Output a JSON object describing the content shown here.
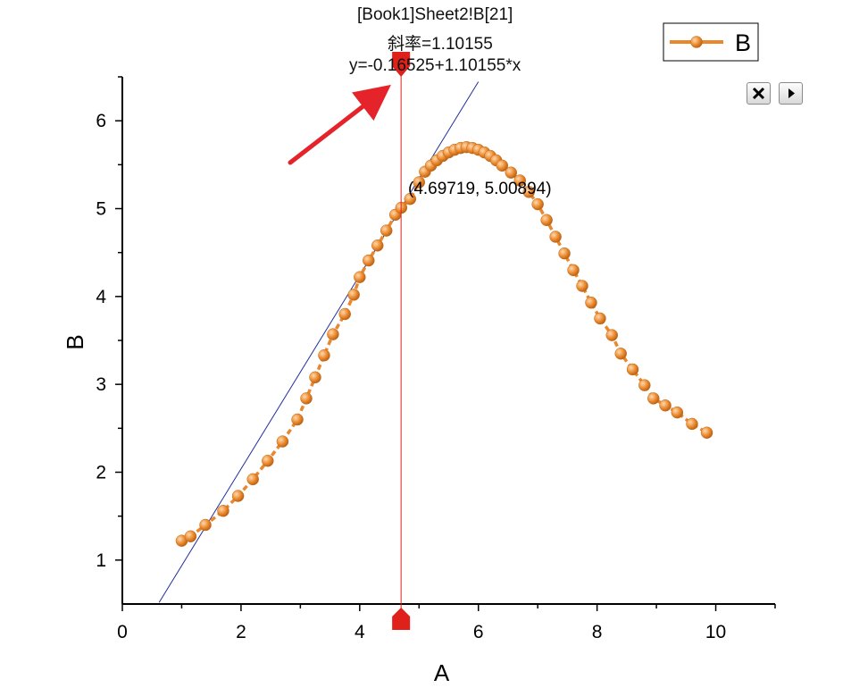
{
  "chart_data": {
    "type": "scatter",
    "xlabel": "A",
    "ylabel": "B",
    "xlim": [
      0,
      11
    ],
    "ylim": [
      0.5,
      6.5
    ],
    "x_ticks": [
      "0",
      "2",
      "4",
      "6",
      "8",
      "10"
    ],
    "y_ticks": [
      "1",
      "2",
      "3",
      "4",
      "5",
      "6"
    ],
    "x_tick_values": [
      0,
      2,
      4,
      6,
      8,
      10
    ],
    "y_tick_values": [
      1,
      2,
      3,
      4,
      5,
      6
    ],
    "legend": {
      "label": "B",
      "position": "top-right"
    },
    "series": [
      {
        "name": "B",
        "color": "#E8872E",
        "x": [
          1.0,
          1.15,
          1.4,
          1.7,
          1.95,
          2.2,
          2.45,
          2.7,
          2.95,
          3.1,
          3.25,
          3.4,
          3.55,
          3.75,
          3.9,
          4.0,
          4.15,
          4.3,
          4.45,
          4.6,
          4.7,
          4.85,
          5.0,
          5.1,
          5.2,
          5.3,
          5.4,
          5.5,
          5.6,
          5.7,
          5.8,
          5.9,
          6.0,
          6.1,
          6.2,
          6.3,
          6.4,
          6.55,
          6.7,
          6.85,
          7.0,
          7.15,
          7.3,
          7.45,
          7.6,
          7.75,
          7.9,
          8.05,
          8.25,
          8.4,
          8.6,
          8.8,
          8.95,
          9.15,
          9.35,
          9.6,
          9.85
        ],
        "y": [
          1.22,
          1.27,
          1.4,
          1.56,
          1.73,
          1.92,
          2.13,
          2.35,
          2.6,
          2.84,
          3.08,
          3.33,
          3.57,
          3.8,
          4.02,
          4.22,
          4.41,
          4.58,
          4.75,
          4.93,
          5.01,
          5.11,
          5.3,
          5.42,
          5.49,
          5.55,
          5.6,
          5.64,
          5.67,
          5.69,
          5.7,
          5.69,
          5.67,
          5.64,
          5.6,
          5.55,
          5.49,
          5.41,
          5.32,
          5.19,
          5.05,
          4.87,
          4.68,
          4.49,
          4.3,
          4.12,
          3.93,
          3.75,
          3.56,
          3.35,
          3.17,
          2.99,
          2.84,
          2.76,
          2.68,
          2.55,
          2.45
        ]
      }
    ],
    "tangent": {
      "intercept": -0.16525,
      "slope": 1.10155,
      "color": "#1f2f9e",
      "x_from": 0.62,
      "x_to": 6.0
    },
    "cursor_x": 4.69719,
    "point_label": "(4.69719, 5.00894)",
    "annotation_lines": [
      "[Book1]Sheet2!B[21]",
      "斜率=1.10155",
      "y=-0.16525+1.10155*x"
    ]
  },
  "controls": {
    "close_icon": "close-icon",
    "play_icon": "play-icon"
  }
}
